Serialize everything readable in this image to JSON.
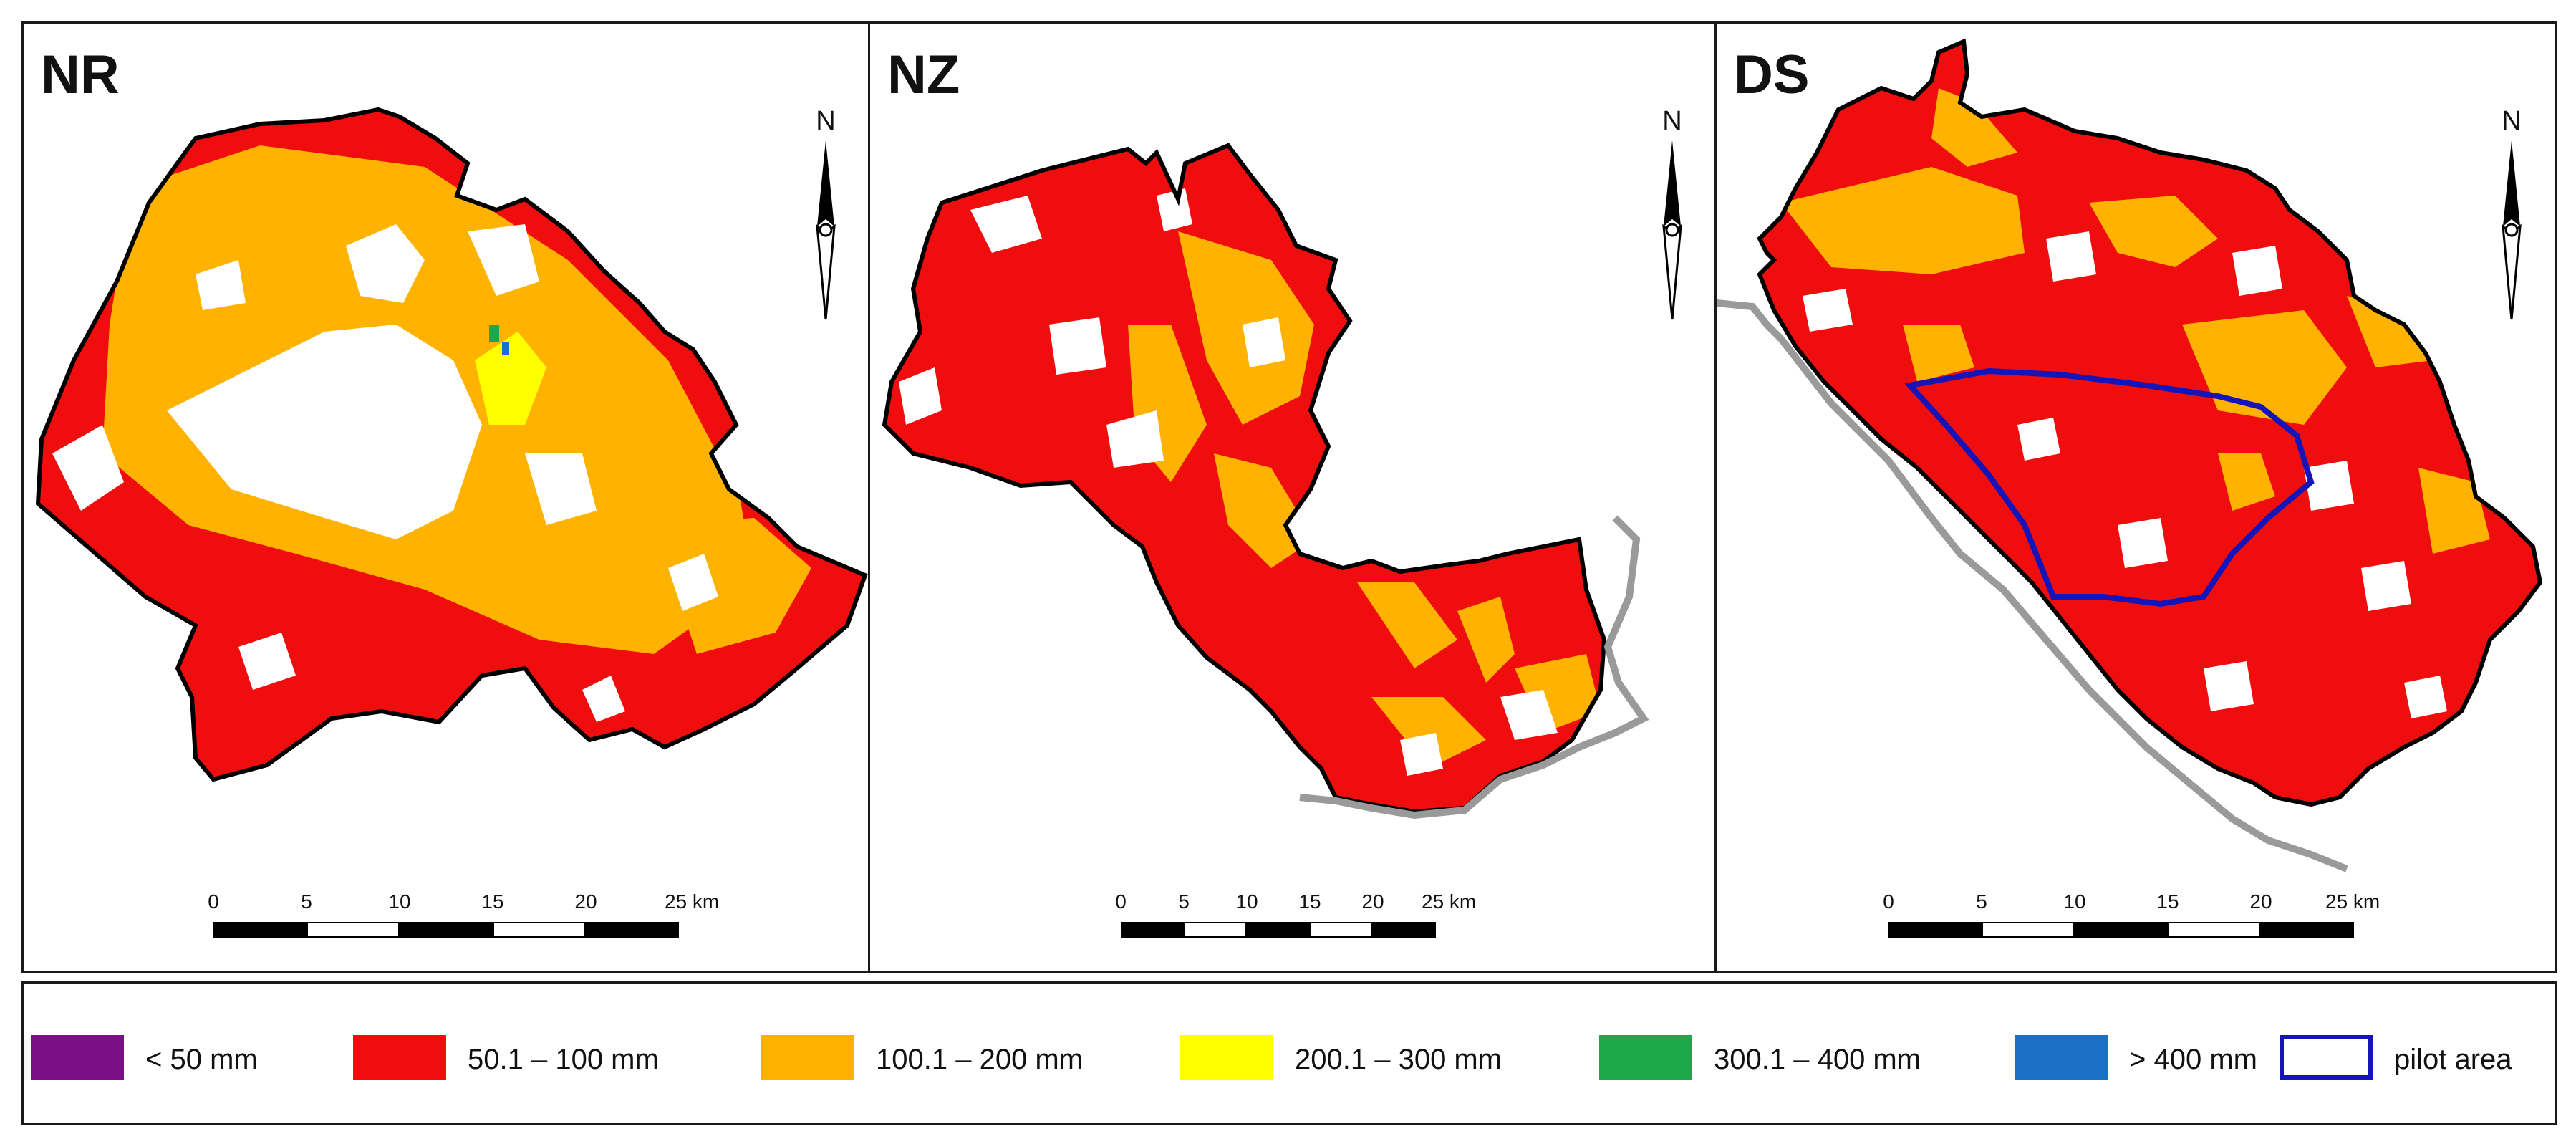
{
  "panels": [
    {
      "id": "NR",
      "title": "NR",
      "north": "N",
      "scale_ticks": [
        "0",
        "5",
        "10",
        "15",
        "20",
        "25 km"
      ]
    },
    {
      "id": "NZ",
      "title": "NZ",
      "north": "N",
      "scale_ticks": [
        "0",
        "5",
        "10",
        "15",
        "20",
        "25 km"
      ]
    },
    {
      "id": "DS",
      "title": "DS",
      "north": "N",
      "scale_ticks": [
        "0",
        "5",
        "10",
        "15",
        "20",
        "25 km"
      ]
    }
  ],
  "legend": {
    "items": [
      {
        "label": "< 50 mm",
        "color": "#7b0f86"
      },
      {
        "label": "50.1 – 100 mm",
        "color": "#ef0d0d"
      },
      {
        "label": "100.1 – 200 mm",
        "color": "#ffb300"
      },
      {
        "label": "200.1 – 300 mm",
        "color": "#ffff00"
      },
      {
        "label": "300.1 – 400 mm",
        "color": "#1fa84a"
      },
      {
        "label": "> 400 mm",
        "color": "#1b6fc4"
      },
      {
        "label": "pilot area",
        "color": "#1414b8"
      }
    ]
  },
  "colors": {
    "red": "#ef0d0d",
    "orange": "#ffb300",
    "yellow": "#ffff00",
    "green": "#1fa84a",
    "blue": "#1b6fc4",
    "purple": "#7b0f86",
    "border": "#000000",
    "river": "#9a9a9a",
    "pilot": "#1414b8"
  }
}
